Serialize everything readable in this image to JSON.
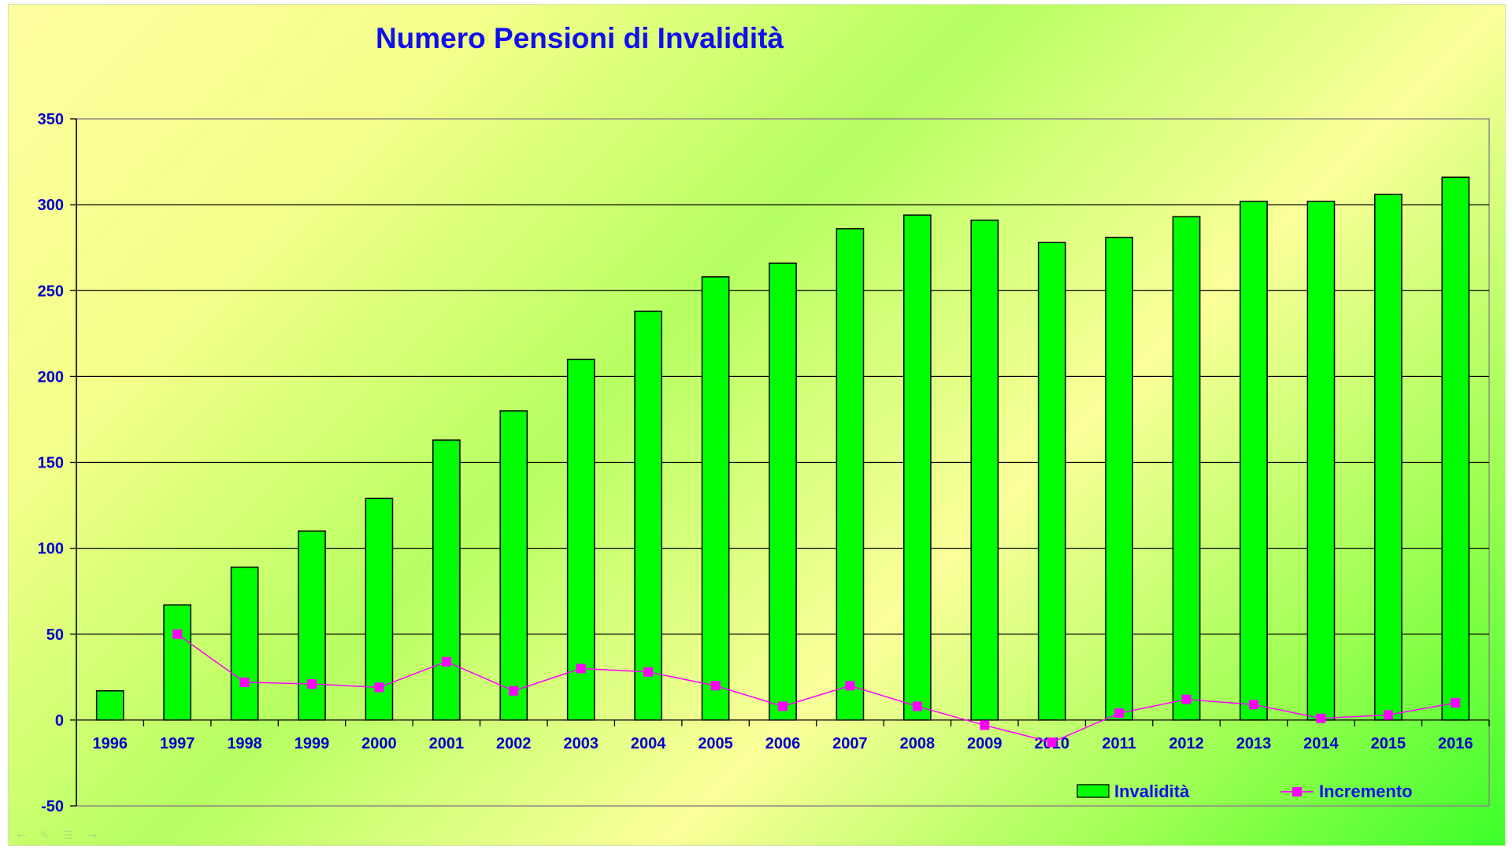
{
  "chart_data": {
    "type": "bar",
    "title": "Numero Pensioni di Invalidità",
    "xlabel": "",
    "ylabel": "",
    "categories": [
      "1996",
      "1997",
      "1998",
      "1999",
      "2000",
      "2001",
      "2002",
      "2003",
      "2004",
      "2005",
      "2006",
      "2007",
      "2008",
      "2009",
      "2010",
      "2011",
      "2012",
      "2013",
      "2014",
      "2015",
      "2016"
    ],
    "series": [
      {
        "name": "Invalidità",
        "type": "bar",
        "color": "#00ff00",
        "values": [
          17,
          67,
          89,
          110,
          129,
          163,
          180,
          210,
          238,
          258,
          266,
          286,
          294,
          291,
          278,
          281,
          293,
          302,
          302,
          306,
          316
        ]
      },
      {
        "name": "Incremento",
        "type": "line",
        "color": "#ff00ff",
        "values": [
          null,
          50,
          22,
          21,
          19,
          34,
          17,
          30,
          28,
          20,
          8,
          20,
          8,
          -3,
          -13,
          4,
          12,
          9,
          1,
          3,
          10
        ]
      }
    ],
    "ylim": [
      -50,
      350
    ],
    "yticks": [
      "-50",
      "0",
      "50",
      "100",
      "150",
      "200",
      "250",
      "300",
      "350"
    ],
    "grid": true,
    "legend_position": "bottom-right",
    "colors": {
      "title": "#1010ee",
      "ticks": "#0000cc",
      "gridline": "#000000"
    }
  },
  "slide_controls": [
    "prev-icon",
    "pen-icon",
    "menu-icon",
    "next-icon"
  ]
}
